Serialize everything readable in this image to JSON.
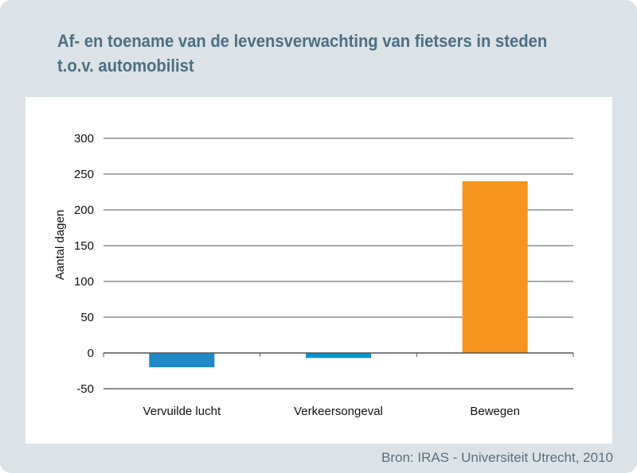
{
  "title_line1": "Af- en toename van de levensverwachting van fietsers in steden",
  "title_line2": "t.o.v. automobilist",
  "source": "Bron: IRAS - Universiteit Utrecht, 2010",
  "chart_data": {
    "type": "bar",
    "title": "Af- en toename van de levensverwachting van fietsers in steden t.o.v. automobilist",
    "xlabel": "",
    "ylabel": "Aantal dagen",
    "ylim": [
      -50,
      300
    ],
    "yticks": [
      300,
      250,
      200,
      150,
      100,
      50,
      0,
      -50
    ],
    "grid": true,
    "categories": [
      "Vervuilde lucht",
      "Verkeersongeval",
      "Bewegen"
    ],
    "values": [
      -20,
      -7,
      240
    ],
    "colors": [
      "#1f88c6",
      "#0096cf",
      "#f7941d"
    ]
  }
}
